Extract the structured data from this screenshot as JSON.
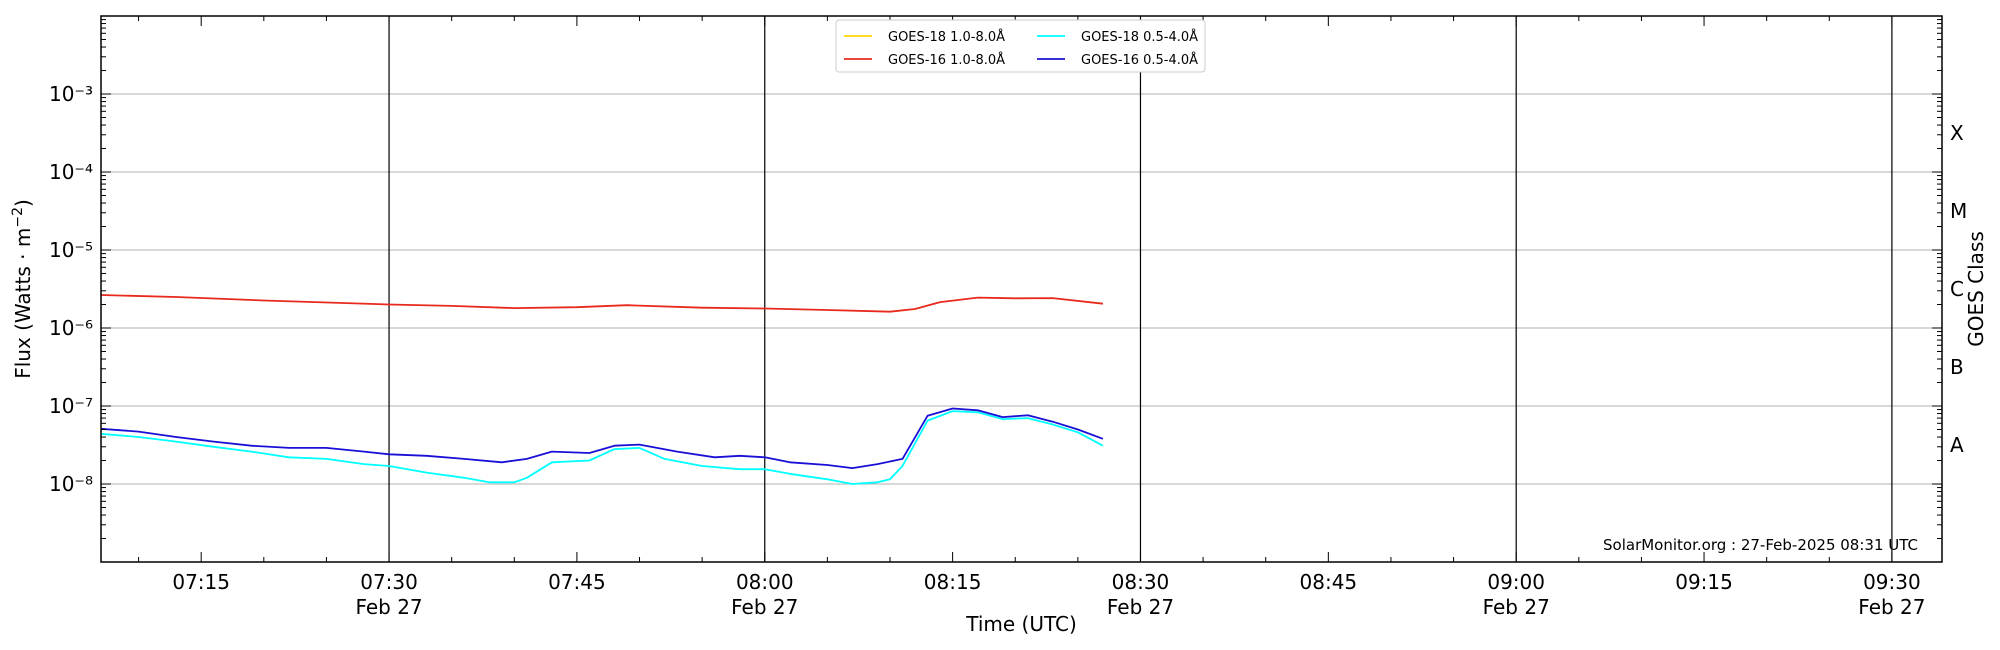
{
  "chart_data": {
    "type": "line",
    "title": "",
    "xlabel": "Time (UTC)",
    "ylabel": "Flux (Watts · m⁻²)",
    "ylabel_right": "GOES Class",
    "yscale": "log",
    "ylim": [
      1e-09,
      0.01
    ],
    "xlim": [
      "07:07",
      "09:34"
    ],
    "grid": "horizontal at decades",
    "legend_position": "top-center",
    "credit": "SolarMonitor.org : 27-Feb-2025 08:31 UTC",
    "x_ticks": [
      {
        "time": "07:15",
        "label": "07:15",
        "date": ""
      },
      {
        "time": "07:30",
        "label": "07:30",
        "date": "Feb 27"
      },
      {
        "time": "07:45",
        "label": "07:45",
        "date": ""
      },
      {
        "time": "08:00",
        "label": "08:00",
        "date": "Feb 27"
      },
      {
        "time": "08:15",
        "label": "08:15",
        "date": ""
      },
      {
        "time": "08:30",
        "label": "08:30",
        "date": "Feb 27"
      },
      {
        "time": "08:45",
        "label": "08:45",
        "date": ""
      },
      {
        "time": "09:00",
        "label": "09:00",
        "date": "Feb 27"
      },
      {
        "time": "09:15",
        "label": "09:15",
        "date": ""
      },
      {
        "time": "09:30",
        "label": "09:30",
        "date": "Feb 27"
      }
    ],
    "y_ticks": [
      {
        "exp": -3,
        "label": "10⁻³"
      },
      {
        "exp": -4,
        "label": "10⁻⁴"
      },
      {
        "exp": -5,
        "label": "10⁻⁵"
      },
      {
        "exp": -6,
        "label": "10⁻⁶"
      },
      {
        "exp": -7,
        "label": "10⁻⁷"
      },
      {
        "exp": -8,
        "label": "10⁻⁸"
      }
    ],
    "goes_classes": [
      {
        "label": "X",
        "flux": 0.000316
      },
      {
        "label": "M",
        "flux": 3.16e-05
      },
      {
        "label": "C",
        "flux": 3.16e-06
      },
      {
        "label": "B",
        "flux": 3.16e-07
      },
      {
        "label": "A",
        "flux": 3.16e-08
      }
    ],
    "series": [
      {
        "name": "GOES-18 1.0-8.0Å",
        "color": "#ffd700",
        "points": []
      },
      {
        "name": "GOES-16 1.0-8.0Å",
        "color": "#e8291c",
        "points": [
          [
            "07:07",
            2.65e-06
          ],
          [
            "07:13",
            2.5e-06
          ],
          [
            "07:20",
            2.25e-06
          ],
          [
            "07:26",
            2.1e-06
          ],
          [
            "07:30",
            2e-06
          ],
          [
            "07:35",
            1.92e-06
          ],
          [
            "07:40",
            1.8e-06
          ],
          [
            "07:45",
            1.85e-06
          ],
          [
            "07:49",
            1.96e-06
          ],
          [
            "07:55",
            1.82e-06
          ],
          [
            "08:00",
            1.78e-06
          ],
          [
            "08:05",
            1.7e-06
          ],
          [
            "08:10",
            1.62e-06
          ],
          [
            "08:12",
            1.75e-06
          ],
          [
            "08:14",
            2.15e-06
          ],
          [
            "08:17",
            2.45e-06
          ],
          [
            "08:20",
            2.4e-06
          ],
          [
            "08:23",
            2.42e-06
          ],
          [
            "08:27",
            2.05e-06
          ]
        ]
      },
      {
        "name": "GOES-18 0.5-4.0Å",
        "color": "#00ffff",
        "points": [
          [
            "07:07",
            4.4e-08
          ],
          [
            "07:10",
            4e-08
          ],
          [
            "07:13",
            3.5e-08
          ],
          [
            "07:16",
            3e-08
          ],
          [
            "07:19",
            2.6e-08
          ],
          [
            "07:22",
            2.2e-08
          ],
          [
            "07:25",
            2.1e-08
          ],
          [
            "07:28",
            1.8e-08
          ],
          [
            "07:30",
            1.7e-08
          ],
          [
            "07:33",
            1.4e-08
          ],
          [
            "07:36",
            1.2e-08
          ],
          [
            "07:38",
            1.05e-08
          ],
          [
            "07:40",
            1.05e-08
          ],
          [
            "07:41",
            1.2e-08
          ],
          [
            "07:43",
            1.9e-08
          ],
          [
            "07:46",
            2e-08
          ],
          [
            "07:48",
            2.8e-08
          ],
          [
            "07:50",
            2.9e-08
          ],
          [
            "07:52",
            2.1e-08
          ],
          [
            "07:55",
            1.7e-08
          ],
          [
            "07:58",
            1.55e-08
          ],
          [
            "08:00",
            1.55e-08
          ],
          [
            "08:02",
            1.35e-08
          ],
          [
            "08:05",
            1.15e-08
          ],
          [
            "08:07",
            1e-08
          ],
          [
            "08:09",
            1.05e-08
          ],
          [
            "08:10",
            1.15e-08
          ],
          [
            "08:11",
            1.7e-08
          ],
          [
            "08:13",
            6.5e-08
          ],
          [
            "08:15",
            8.6e-08
          ],
          [
            "08:17",
            8.3e-08
          ],
          [
            "08:19",
            6.8e-08
          ],
          [
            "08:21",
            7e-08
          ],
          [
            "08:23",
            5.8e-08
          ],
          [
            "08:25",
            4.6e-08
          ],
          [
            "08:27",
            3.1e-08
          ]
        ]
      },
      {
        "name": "GOES-16 0.5-4.0Å",
        "color": "#1a0fd6",
        "points": [
          [
            "07:07",
            5.1e-08
          ],
          [
            "07:10",
            4.7e-08
          ],
          [
            "07:13",
            4e-08
          ],
          [
            "07:16",
            3.5e-08
          ],
          [
            "07:19",
            3.1e-08
          ],
          [
            "07:22",
            2.9e-08
          ],
          [
            "07:25",
            2.9e-08
          ],
          [
            "07:28",
            2.6e-08
          ],
          [
            "07:30",
            2.4e-08
          ],
          [
            "07:33",
            2.3e-08
          ],
          [
            "07:36",
            2.1e-08
          ],
          [
            "07:39",
            1.9e-08
          ],
          [
            "07:41",
            2.1e-08
          ],
          [
            "07:43",
            2.6e-08
          ],
          [
            "07:46",
            2.5e-08
          ],
          [
            "07:48",
            3.1e-08
          ],
          [
            "07:50",
            3.2e-08
          ],
          [
            "07:53",
            2.6e-08
          ],
          [
            "07:56",
            2.2e-08
          ],
          [
            "07:58",
            2.3e-08
          ],
          [
            "08:00",
            2.2e-08
          ],
          [
            "08:02",
            1.9e-08
          ],
          [
            "08:05",
            1.75e-08
          ],
          [
            "08:07",
            1.6e-08
          ],
          [
            "08:09",
            1.8e-08
          ],
          [
            "08:11",
            2.1e-08
          ],
          [
            "08:13",
            7.5e-08
          ],
          [
            "08:15",
            9.3e-08
          ],
          [
            "08:17",
            8.8e-08
          ],
          [
            "08:19",
            7.2e-08
          ],
          [
            "08:21",
            7.6e-08
          ],
          [
            "08:23",
            6.3e-08
          ],
          [
            "08:25",
            5e-08
          ],
          [
            "08:27",
            3.8e-08
          ]
        ]
      }
    ]
  }
}
